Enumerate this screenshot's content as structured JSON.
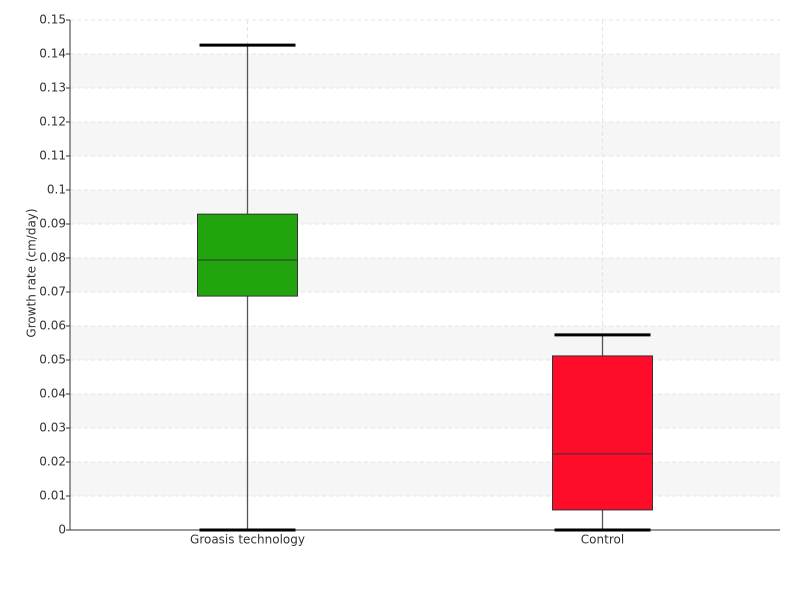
{
  "chart_data": {
    "type": "box",
    "y_label": "Growth rate (cm/day)",
    "categories": [
      "Groasis technology",
      "Control"
    ],
    "boxes": [
      {
        "min": 0,
        "q1": 0.0688,
        "median": 0.0794,
        "q3": 0.0929,
        "max": 0.1426,
        "color": "#22a40f"
      },
      {
        "min": 0,
        "q1": 0.0059,
        "median": 0.0224,
        "q3": 0.0512,
        "max": 0.0574,
        "color": "#ff0c2b"
      }
    ],
    "ylim": [
      0,
      0.15
    ],
    "yticks": [
      0,
      0.01,
      0.02,
      0.03,
      0.04,
      0.05,
      0.06,
      0.07,
      0.08,
      0.09,
      0.1,
      0.11,
      0.12,
      0.13,
      0.14,
      0.15
    ],
    "grid": true
  }
}
